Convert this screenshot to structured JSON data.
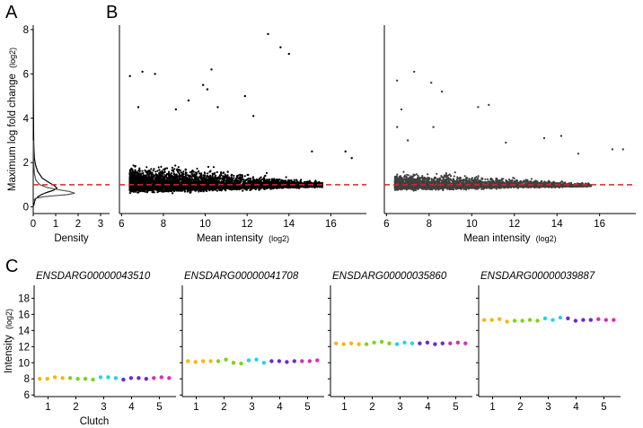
{
  "panel_labels": {
    "a": "A",
    "b": "B",
    "c": "C"
  },
  "colors": {
    "axis": "#000000",
    "threshold": "#d62728",
    "scatter_left": "#000000",
    "scatter_right": "#404040",
    "clutch": [
      "#f5b70f",
      "#7fd21f",
      "#24d4e6",
      "#6a2bc9",
      "#d42fb8"
    ]
  },
  "chart_data": [
    {
      "type": "line",
      "panel": "A",
      "ylabel": "Maximum log fold change",
      "ylabel_unit": "(log2)",
      "xlabel": "Density",
      "xlim": [
        0,
        3.4
      ],
      "ylim": [
        -0.3,
        8.2
      ],
      "x_ticks": [
        "0",
        "1",
        "2",
        "3"
      ],
      "y_ticks": [
        "0",
        "2",
        "4",
        "6",
        "8"
      ],
      "threshold_y": 1,
      "series": [
        {
          "x": [
            0.02,
            0.05,
            0.1,
            0.2,
            0.35,
            0.6,
            0.9,
            1.05,
            0.95,
            0.7,
            0.4,
            0.2,
            0.1,
            0.05,
            0.03,
            0.02,
            0.01,
            0.005,
            0.002
          ],
          "y": [
            0.05,
            0.2,
            0.35,
            0.45,
            0.55,
            0.65,
            0.75,
            0.85,
            0.95,
            1.1,
            1.3,
            1.6,
            1.9,
            2.2,
            2.6,
            3.0,
            4.0,
            5.5,
            8.0
          ]
        },
        {
          "x": [
            0.02,
            0.1,
            0.4,
            0.9,
            1.5,
            1.85,
            1.6,
            1.1,
            0.6,
            0.3,
            0.12,
            0.05,
            0.02,
            0.005
          ],
          "y": [
            0.3,
            0.38,
            0.45,
            0.5,
            0.55,
            0.62,
            0.7,
            0.78,
            0.88,
            1.0,
            1.2,
            1.5,
            2.0,
            3.0
          ]
        }
      ]
    },
    {
      "type": "scatter",
      "panel": "B",
      "xlabel": "Mean intensity",
      "xlabel_unit": "(log2)",
      "xlim": [
        5.9,
        17.7
      ],
      "ylim": [
        -0.3,
        8.2
      ],
      "x_ticks": [
        "6",
        "8",
        "10",
        "12",
        "14",
        "16"
      ],
      "threshold_y": 1,
      "outliers": [
        [
          13.0,
          7.8
        ],
        [
          13.6,
          7.2
        ],
        [
          14.0,
          6.9
        ],
        [
          7.0,
          6.1
        ],
        [
          7.6,
          6.0
        ],
        [
          10.3,
          6.2
        ],
        [
          9.9,
          5.5
        ],
        [
          10.1,
          5.3
        ],
        [
          6.4,
          5.9
        ],
        [
          11.9,
          5.0
        ],
        [
          10.6,
          4.5
        ],
        [
          6.8,
          4.5
        ],
        [
          9.2,
          4.8
        ],
        [
          8.6,
          4.4
        ],
        [
          12.3,
          4.1
        ],
        [
          16.7,
          2.5
        ],
        [
          17.0,
          2.2
        ],
        [
          15.1,
          2.5
        ]
      ]
    },
    {
      "type": "scatter",
      "panel": "B-right",
      "xlabel": "Mean intensity",
      "xlabel_unit": "(log2)",
      "xlim": [
        5.9,
        17.7
      ],
      "ylim": [
        -0.3,
        8.2
      ],
      "x_ticks": [
        "6",
        "8",
        "10",
        "12",
        "14",
        "16"
      ],
      "threshold_y": 1,
      "outliers": [
        [
          7.3,
          6.1
        ],
        [
          6.5,
          5.7
        ],
        [
          8.1,
          5.6
        ],
        [
          8.6,
          5.2
        ],
        [
          10.8,
          4.6
        ],
        [
          10.3,
          4.5
        ],
        [
          6.7,
          4.4
        ],
        [
          8.2,
          3.6
        ],
        [
          6.5,
          3.6
        ],
        [
          13.4,
          3.1
        ],
        [
          14.2,
          3.2
        ],
        [
          7.0,
          3.0
        ],
        [
          11.6,
          2.9
        ],
        [
          16.6,
          2.6
        ],
        [
          17.1,
          2.6
        ],
        [
          15.0,
          2.4
        ]
      ]
    },
    {
      "type": "scatter",
      "panel": "C",
      "xlabel": "Clutch",
      "ylabel": "Intensity",
      "ylabel_unit": "(log2)",
      "ylim": [
        5.8,
        19.6
      ],
      "xlim": [
        0.5,
        5.6
      ],
      "x_ticks": [
        "1",
        "2",
        "3",
        "4",
        "5"
      ],
      "y_ticks": [
        "6",
        "8",
        "10",
        "12",
        "14",
        "16",
        "18"
      ],
      "genes": [
        {
          "name": "ENSDARG00000043510",
          "values": [
            8.0,
            8.0,
            8.2,
            8.1,
            8.1,
            8.0,
            8.0,
            7.9,
            8.2,
            8.2,
            8.1,
            7.9,
            8.1,
            8.1,
            8.0,
            8.1,
            8.2,
            8.1
          ]
        },
        {
          "name": "ENSDARG00000041708",
          "values": [
            10.2,
            10.1,
            10.2,
            10.2,
            10.2,
            10.4,
            10.0,
            9.9,
            10.3,
            10.4,
            10.0,
            10.2,
            10.2,
            10.1,
            10.2,
            10.2,
            10.2,
            10.3
          ]
        },
        {
          "name": "ENSDARG00000035860",
          "values": [
            12.4,
            12.3,
            12.4,
            12.3,
            12.3,
            12.5,
            12.6,
            12.4,
            12.3,
            12.5,
            12.4,
            12.4,
            12.5,
            12.3,
            12.4,
            12.4,
            12.5,
            12.4
          ]
        },
        {
          "name": "ENSDARG00000039887",
          "values": [
            15.3,
            15.3,
            15.4,
            15.1,
            15.2,
            15.2,
            15.3,
            15.2,
            15.5,
            15.3,
            15.6,
            15.5,
            15.2,
            15.3,
            15.3,
            15.4,
            15.3,
            15.3
          ]
        }
      ]
    }
  ]
}
